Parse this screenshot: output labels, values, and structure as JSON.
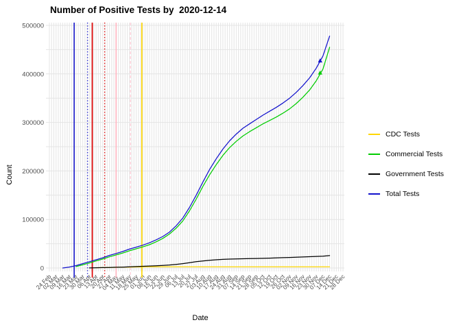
{
  "chart_data": {
    "type": "line",
    "title": "Number of Positive Tests by  2020-12-14",
    "xlabel": "Date",
    "ylabel": "Count",
    "ylim": [
      0,
      500000
    ],
    "y_ticks": [
      0,
      100000,
      200000,
      300000,
      400000,
      500000
    ],
    "y_minor_step": 50000,
    "grid": true,
    "grid_color": "#e4e4e4",
    "axis_text_color": "#4d4d4d",
    "legend_position": "right",
    "x_days_span": 308,
    "x_tick_labels": [
      "24 Feb",
      "02 Mar",
      "09 Mar",
      "16 Mar",
      "23 Mar",
      "30 Mar",
      "06 Apr",
      "13 Apr",
      "20 Apr",
      "27 Apr",
      "04 May",
      "11 May",
      "18 May",
      "25 May",
      "01 Jun",
      "08 Jun",
      "15 Jun",
      "22 Jun",
      "29 Jun",
      "06 Jul",
      "13 Jul",
      "20 Jul",
      "27 Jul",
      "03 Aug",
      "10 Aug",
      "17 Aug",
      "24 Aug",
      "31 Aug",
      "07 Sep",
      "14 Sep",
      "21 Sep",
      "28 Sep",
      "05 Oct",
      "12 Oct",
      "19 Oct",
      "26 Oct",
      "02 Nov",
      "09 Nov",
      "16 Nov",
      "23 Nov",
      "30 Nov",
      "07 Dec",
      "14 Dec",
      "21 Dec",
      "28 Dec"
    ],
    "series": [
      {
        "name": "CDC Tests",
        "color": "#FFD700",
        "values": [
          null,
          null,
          null,
          null,
          null,
          null,
          null,
          500,
          800,
          1100,
          1400,
          1700,
          1900,
          2100,
          2250,
          2350,
          2400,
          2400,
          2400,
          2400,
          2400,
          2400,
          2400,
          2400,
          2400,
          2400,
          2400,
          2400,
          2400,
          2400,
          2400,
          2400,
          2400,
          2400,
          2400,
          2400,
          2400,
          2400,
          2400,
          2400,
          2400,
          2400,
          2400,
          null,
          null
        ]
      },
      {
        "name": "Commercial Tests",
        "color": "#00CC00",
        "values": [
          null,
          null,
          null,
          null,
          3000,
          6500,
          10500,
          14500,
          18500,
          23000,
          27000,
          31000,
          35500,
          39500,
          43500,
          48000,
          54000,
          61000,
          70000,
          82000,
          97000,
          118000,
          142000,
          168000,
          192000,
          213000,
          232000,
          248000,
          261000,
          272000,
          281000,
          289000,
          297000,
          304000,
          311000,
          319000,
          328000,
          339000,
          352000,
          367000,
          386000,
          410000,
          455000,
          null,
          null
        ]
      },
      {
        "name": "Government Tests",
        "color": "#000000",
        "values": [
          null,
          null,
          null,
          null,
          null,
          null,
          200,
          500,
          800,
          1100,
          1500,
          1900,
          2400,
          2900,
          3500,
          4100,
          4700,
          5400,
          6200,
          7500,
          9000,
          11000,
          13000,
          14500,
          16000,
          17000,
          17800,
          18300,
          18700,
          19000,
          19300,
          19600,
          19900,
          20300,
          20800,
          21300,
          21800,
          22300,
          22800,
          23300,
          23800,
          24300,
          25500,
          null,
          null
        ]
      },
      {
        "name": "Total Tests",
        "color": "#1111CC",
        "values": [
          null,
          null,
          0,
          2000,
          5000,
          9000,
          13000,
          17000,
          21000,
          26000,
          30000,
          34000,
          39000,
          43000,
          47000,
          52000,
          58000,
          65000,
          74000,
          87000,
          103000,
          125000,
          150000,
          177000,
          203000,
          225000,
          245000,
          262000,
          276000,
          288000,
          297000,
          306000,
          315000,
          323000,
          331000,
          340000,
          350000,
          362000,
          376000,
          392000,
          412000,
          437000,
          478000,
          null,
          null
        ]
      }
    ],
    "vlines": [
      {
        "day": 26,
        "color": "#2222CC",
        "style": "solid"
      },
      {
        "day": 40,
        "color": "#2222CC",
        "style": "dotted"
      },
      {
        "day": 45,
        "color": "#DD0000",
        "style": "solid"
      },
      {
        "day": 58,
        "color": "#DD0000",
        "style": "dotted"
      },
      {
        "day": 70,
        "color": "#FFB6C1",
        "style": "solid"
      },
      {
        "day": 85,
        "color": "#FFD0DA",
        "style": "dashed"
      },
      {
        "day": 97,
        "color": "#FFD700",
        "style": "solid"
      }
    ],
    "end_markers": [
      {
        "series": "Total Tests",
        "day": 284,
        "value": 427000
      },
      {
        "series": "Commercial Tests",
        "day": 284,
        "value": 402000
      }
    ]
  }
}
